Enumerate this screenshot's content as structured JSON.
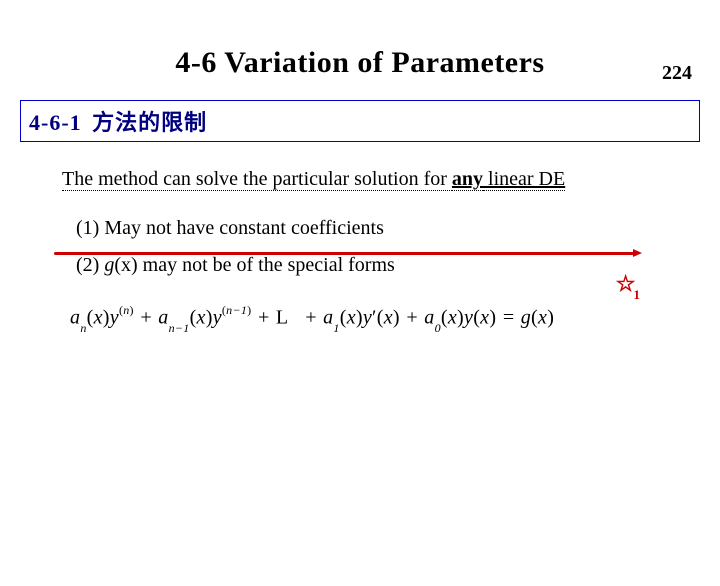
{
  "page_number": "224",
  "title": "4-6  Variation of Parameters",
  "section": {
    "number": "4-6-1",
    "name": "方法的限制"
  },
  "intro": {
    "prefix": "The method can solve the particular solution for ",
    "emphasis": "any",
    "suffix": " linear DE"
  },
  "star": {
    "symbol": "☆",
    "sub": "1"
  },
  "points": {
    "p1": "(1) May not have constant coefficients",
    "p2_prefix": "(2) ",
    "p2_g": "g",
    "p2_x": "(x)",
    "p2_suffix": " may not be of the special forms"
  },
  "equation": {
    "an": "a",
    "an_sub": "n",
    "x": "x",
    "y": "y",
    "n_sup": "n",
    "plus": " + ",
    "an1_sub": "n−1",
    "nm1_sup": "n−1",
    "ell": "L",
    "a1_sub": "1",
    "prime": "′",
    "a0_sub": "0",
    "eq": " = ",
    "g": "g"
  },
  "colors": {
    "section_border": "#0000cc",
    "section_text": "#000080",
    "redline": "#cc0000",
    "text": "#000000",
    "bg": "#ffffff"
  },
  "fonts": {
    "title_size": 30,
    "section_size": 22,
    "body_size": 20,
    "eq_size": 20
  }
}
